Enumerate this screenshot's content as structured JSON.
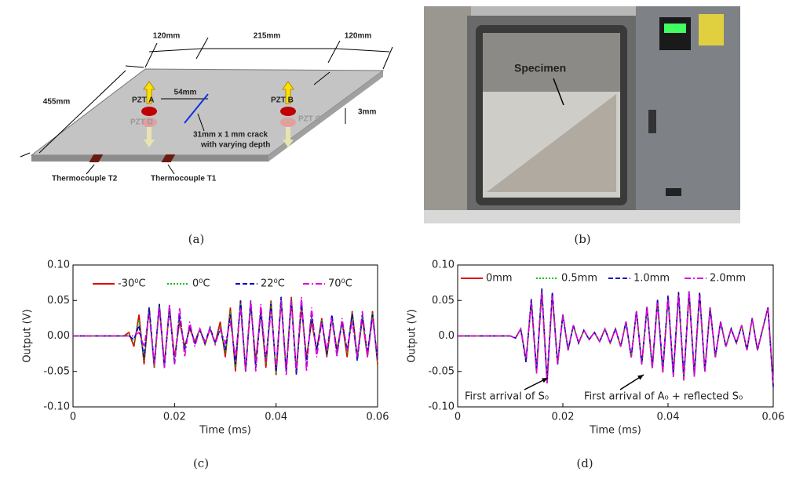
{
  "diagram": {
    "dimensions": [
      "120mm",
      "215mm",
      "120mm",
      "455mm",
      "54mm",
      "3mm"
    ],
    "sensors": [
      "PZT A",
      "PZT D",
      "PZT B",
      "PZT C"
    ],
    "crack": [
      "31mm x 1 mm crack",
      "with varying depth"
    ],
    "thermocouples": [
      "Thermocouple T2",
      "Thermocouple T1"
    ]
  },
  "photo": {
    "label": "Specimen"
  },
  "captions": [
    "(a)",
    "(b)",
    "(c)",
    "(d)"
  ],
  "chart_data": [
    {
      "type": "line",
      "xlabel": "Time (ms)",
      "ylabel": "Output (V)",
      "xlim": [
        0,
        0.06
      ],
      "xticks": [
        0,
        0.02,
        0.04,
        0.06
      ],
      "ylim": [
        -0.1,
        0.1
      ],
      "yticks": [
        {
          "value": -0.1,
          "label": "-0.10"
        },
        {
          "value": -0.05,
          "label": "-0.05"
        },
        {
          "value": 0,
          "label": "0.00"
        },
        {
          "value": 0.05,
          "label": "0.05"
        },
        {
          "value": 0.1,
          "label": "0.10"
        }
      ],
      "legend": "upper center",
      "x": [
        0,
        0.001,
        0.002,
        0.003,
        0.004,
        0.005,
        0.006,
        0.007,
        0.008,
        0.009,
        0.01,
        0.011,
        0.012,
        0.013,
        0.014,
        0.015,
        0.016,
        0.017,
        0.018,
        0.019,
        0.02,
        0.021,
        0.022,
        0.023,
        0.024,
        0.025,
        0.026,
        0.027,
        0.028,
        0.029,
        0.03,
        0.031,
        0.032,
        0.033,
        0.034,
        0.035,
        0.036,
        0.037,
        0.038,
        0.039,
        0.04,
        0.041,
        0.042,
        0.043,
        0.044,
        0.045,
        0.046,
        0.047,
        0.048,
        0.049,
        0.05,
        0.051,
        0.052,
        0.053,
        0.054,
        0.055,
        0.056,
        0.057,
        0.058,
        0.059,
        0.06
      ],
      "series": [
        {
          "name": "-30⁰C",
          "color": "#e00000",
          "dash": "solid",
          "values": [
            0,
            0,
            0,
            0,
            0,
            0,
            0,
            0,
            0,
            0,
            0,
            0.005,
            -0.015,
            0.03,
            -0.04,
            0.04,
            -0.045,
            0.045,
            -0.04,
            0.04,
            -0.03,
            0.02,
            -0.015,
            0.01,
            -0.008,
            0.01,
            -0.012,
            0.01,
            -0.01,
            0.02,
            -0.03,
            0.04,
            -0.05,
            0.05,
            -0.05,
            0.045,
            -0.035,
            0.035,
            -0.045,
            0.05,
            -0.055,
            0.05,
            -0.05,
            0.055,
            -0.05,
            0.04,
            -0.03,
            0.02,
            -0.02,
            0.025,
            -0.03,
            0.025,
            -0.02,
            0.02,
            -0.03,
            0.035,
            -0.03,
            0.025,
            -0.03,
            0.035,
            -0.04
          ]
        },
        {
          "name": "0⁰C",
          "color": "#00c000",
          "dash": "dotted",
          "values": [
            0,
            0,
            0,
            0,
            0,
            0,
            0,
            0,
            0,
            0,
            0,
            0.003,
            -0.01,
            0.023,
            -0.035,
            0.04,
            -0.043,
            0.045,
            -0.043,
            0.04,
            -0.035,
            0.025,
            -0.018,
            0.013,
            -0.009,
            0.009,
            -0.011,
            0.011,
            -0.01,
            0.015,
            -0.025,
            0.035,
            -0.045,
            0.05,
            -0.05,
            0.048,
            -0.04,
            0.035,
            -0.04,
            0.048,
            -0.053,
            0.053,
            -0.05,
            0.053,
            -0.053,
            0.045,
            -0.035,
            0.025,
            -0.02,
            0.023,
            -0.028,
            0.028,
            -0.023,
            0.02,
            -0.025,
            0.033,
            -0.033,
            0.028,
            -0.028,
            0.033,
            -0.038
          ]
        },
        {
          "name": "22⁰C",
          "color": "#0000c0",
          "dash": "dashed",
          "values": [
            0,
            0,
            0,
            0,
            0,
            0,
            0,
            0,
            0,
            0,
            0,
            0,
            -0.005,
            0.015,
            -0.03,
            0.04,
            -0.04,
            0.045,
            -0.045,
            0.04,
            -0.04,
            0.03,
            -0.02,
            0.015,
            -0.01,
            0.008,
            -0.01,
            0.012,
            -0.01,
            0.01,
            -0.02,
            0.03,
            -0.04,
            0.05,
            -0.05,
            0.05,
            -0.045,
            0.035,
            -0.035,
            0.045,
            -0.05,
            0.055,
            -0.05,
            0.05,
            -0.055,
            0.05,
            -0.04,
            0.03,
            -0.02,
            0.02,
            -0.025,
            0.03,
            -0.025,
            0.02,
            -0.02,
            0.03,
            -0.035,
            0.03,
            -0.025,
            0.03,
            -0.035
          ]
        },
        {
          "name": "70⁰C",
          "color": "#e000e0",
          "dash": "dashdot",
          "values": [
            0,
            0,
            0,
            0,
            0,
            0,
            0,
            0,
            0,
            0,
            0,
            0,
            0,
            0.005,
            -0.015,
            0.03,
            -0.04,
            0.04,
            -0.045,
            0.045,
            -0.04,
            0.04,
            -0.03,
            0.02,
            -0.015,
            0.01,
            -0.008,
            0.01,
            -0.012,
            0.01,
            -0.01,
            0.02,
            -0.03,
            0.04,
            -0.05,
            0.05,
            -0.05,
            0.045,
            -0.035,
            0.035,
            -0.045,
            0.05,
            -0.055,
            0.05,
            -0.05,
            0.055,
            -0.05,
            0.04,
            -0.03,
            0.02,
            -0.02,
            0.025,
            -0.03,
            0.025,
            -0.02,
            0.02,
            -0.03,
            0.035,
            -0.03,
            0.025,
            -0.03
          ]
        }
      ]
    },
    {
      "type": "line",
      "xlabel": "Time (ms)",
      "ylabel": "Output (V)",
      "xlim": [
        0,
        0.06
      ],
      "xticks": [
        0,
        0.02,
        0.04,
        0.06
      ],
      "ylim": [
        -0.1,
        0.1
      ],
      "yticks": [
        {
          "value": -0.1,
          "label": "-0.10"
        },
        {
          "value": -0.05,
          "label": "-0.05"
        },
        {
          "value": 0,
          "label": "0.0"
        },
        {
          "value": 0.05,
          "label": "0.05"
        },
        {
          "value": 0.1,
          "label": "0.10"
        }
      ],
      "legend": "upper center",
      "annotations": [
        "First arrival of S₀",
        "First arrival of A₀ + reflected S₀"
      ],
      "x": [
        0,
        0.001,
        0.002,
        0.003,
        0.004,
        0.005,
        0.006,
        0.007,
        0.008,
        0.009,
        0.01,
        0.011,
        0.012,
        0.013,
        0.014,
        0.015,
        0.016,
        0.017,
        0.018,
        0.019,
        0.02,
        0.021,
        0.022,
        0.023,
        0.024,
        0.025,
        0.026,
        0.027,
        0.028,
        0.029,
        0.03,
        0.031,
        0.032,
        0.033,
        0.034,
        0.035,
        0.036,
        0.037,
        0.038,
        0.039,
        0.04,
        0.041,
        0.042,
        0.043,
        0.044,
        0.045,
        0.046,
        0.047,
        0.048,
        0.049,
        0.05,
        0.051,
        0.052,
        0.053,
        0.054,
        0.055,
        0.056,
        0.057,
        0.058,
        0.059,
        0.06
      ],
      "series": [
        {
          "name": "0mm",
          "color": "#e00000",
          "dash": "solid",
          "values": [
            0,
            0,
            0,
            0,
            0,
            0,
            0,
            0,
            0,
            0,
            0,
            -0.003,
            0.01,
            -0.035,
            0.05,
            -0.05,
            0.065,
            -0.065,
            0.06,
            -0.04,
            0.03,
            -0.02,
            0.015,
            -0.01,
            0.008,
            -0.005,
            0.005,
            -0.008,
            0.01,
            -0.01,
            0.01,
            -0.015,
            0.02,
            -0.03,
            0.035,
            -0.04,
            0.04,
            -0.045,
            0.05,
            -0.05,
            0.055,
            -0.055,
            0.06,
            -0.06,
            0.06,
            -0.055,
            0.06,
            -0.05,
            0.04,
            -0.03,
            0.02,
            -0.015,
            0.01,
            -0.01,
            0.015,
            -0.02,
            0.025,
            -0.02,
            0.01,
            0.04,
            -0.07
          ]
        },
        {
          "name": "0.5mm",
          "color": "#00c000",
          "dash": "dotted",
          "values": [
            0,
            0,
            0,
            0,
            0,
            0,
            0,
            0,
            0,
            0,
            0,
            -0.003,
            0.01,
            -0.033,
            0.048,
            -0.052,
            0.063,
            -0.067,
            0.058,
            -0.04,
            0.03,
            -0.02,
            0.015,
            -0.01,
            0.008,
            -0.005,
            0.005,
            -0.008,
            0.01,
            -0.01,
            0.01,
            -0.015,
            0.02,
            -0.03,
            0.035,
            -0.04,
            0.04,
            -0.045,
            0.048,
            -0.052,
            0.053,
            -0.057,
            0.058,
            -0.062,
            0.062,
            -0.057,
            0.058,
            -0.05,
            0.04,
            -0.03,
            0.02,
            -0.015,
            0.01,
            -0.01,
            0.015,
            -0.02,
            0.025,
            -0.02,
            0.01,
            0.04,
            -0.068
          ]
        },
        {
          "name": "1.0mm",
          "color": "#0000c0",
          "dash": "dashed",
          "values": [
            0,
            0,
            0,
            0,
            0,
            0,
            0,
            0,
            0,
            0,
            0,
            -0.003,
            0.01,
            -0.037,
            0.052,
            -0.048,
            0.067,
            -0.063,
            0.062,
            -0.04,
            0.03,
            -0.02,
            0.015,
            -0.01,
            0.008,
            -0.005,
            0.005,
            -0.008,
            0.01,
            -0.01,
            0.01,
            -0.015,
            0.02,
            -0.03,
            0.035,
            -0.04,
            0.04,
            -0.045,
            0.052,
            -0.048,
            0.057,
            -0.053,
            0.062,
            -0.058,
            0.063,
            -0.053,
            0.062,
            -0.05,
            0.04,
            -0.03,
            0.02,
            -0.015,
            0.01,
            -0.01,
            0.015,
            -0.02,
            0.025,
            -0.02,
            0.01,
            0.04,
            -0.072
          ]
        },
        {
          "name": "2.0mm",
          "color": "#e000e0",
          "dash": "dashdot",
          "values": [
            0,
            0,
            0,
            0,
            0,
            0,
            0,
            0,
            0,
            0,
            0,
            -0.003,
            0.01,
            -0.032,
            0.047,
            -0.053,
            0.062,
            -0.068,
            0.057,
            -0.04,
            0.03,
            -0.02,
            0.015,
            -0.01,
            0.008,
            -0.005,
            0.005,
            -0.008,
            0.01,
            -0.01,
            0.01,
            -0.015,
            0.02,
            -0.03,
            0.035,
            -0.04,
            0.042,
            -0.047,
            0.047,
            -0.053,
            0.052,
            -0.058,
            0.057,
            -0.063,
            0.064,
            -0.058,
            0.057,
            -0.05,
            0.04,
            -0.03,
            0.02,
            -0.015,
            0.01,
            -0.01,
            0.015,
            -0.02,
            0.025,
            -0.02,
            0.01,
            0.04,
            -0.066
          ]
        }
      ]
    }
  ]
}
